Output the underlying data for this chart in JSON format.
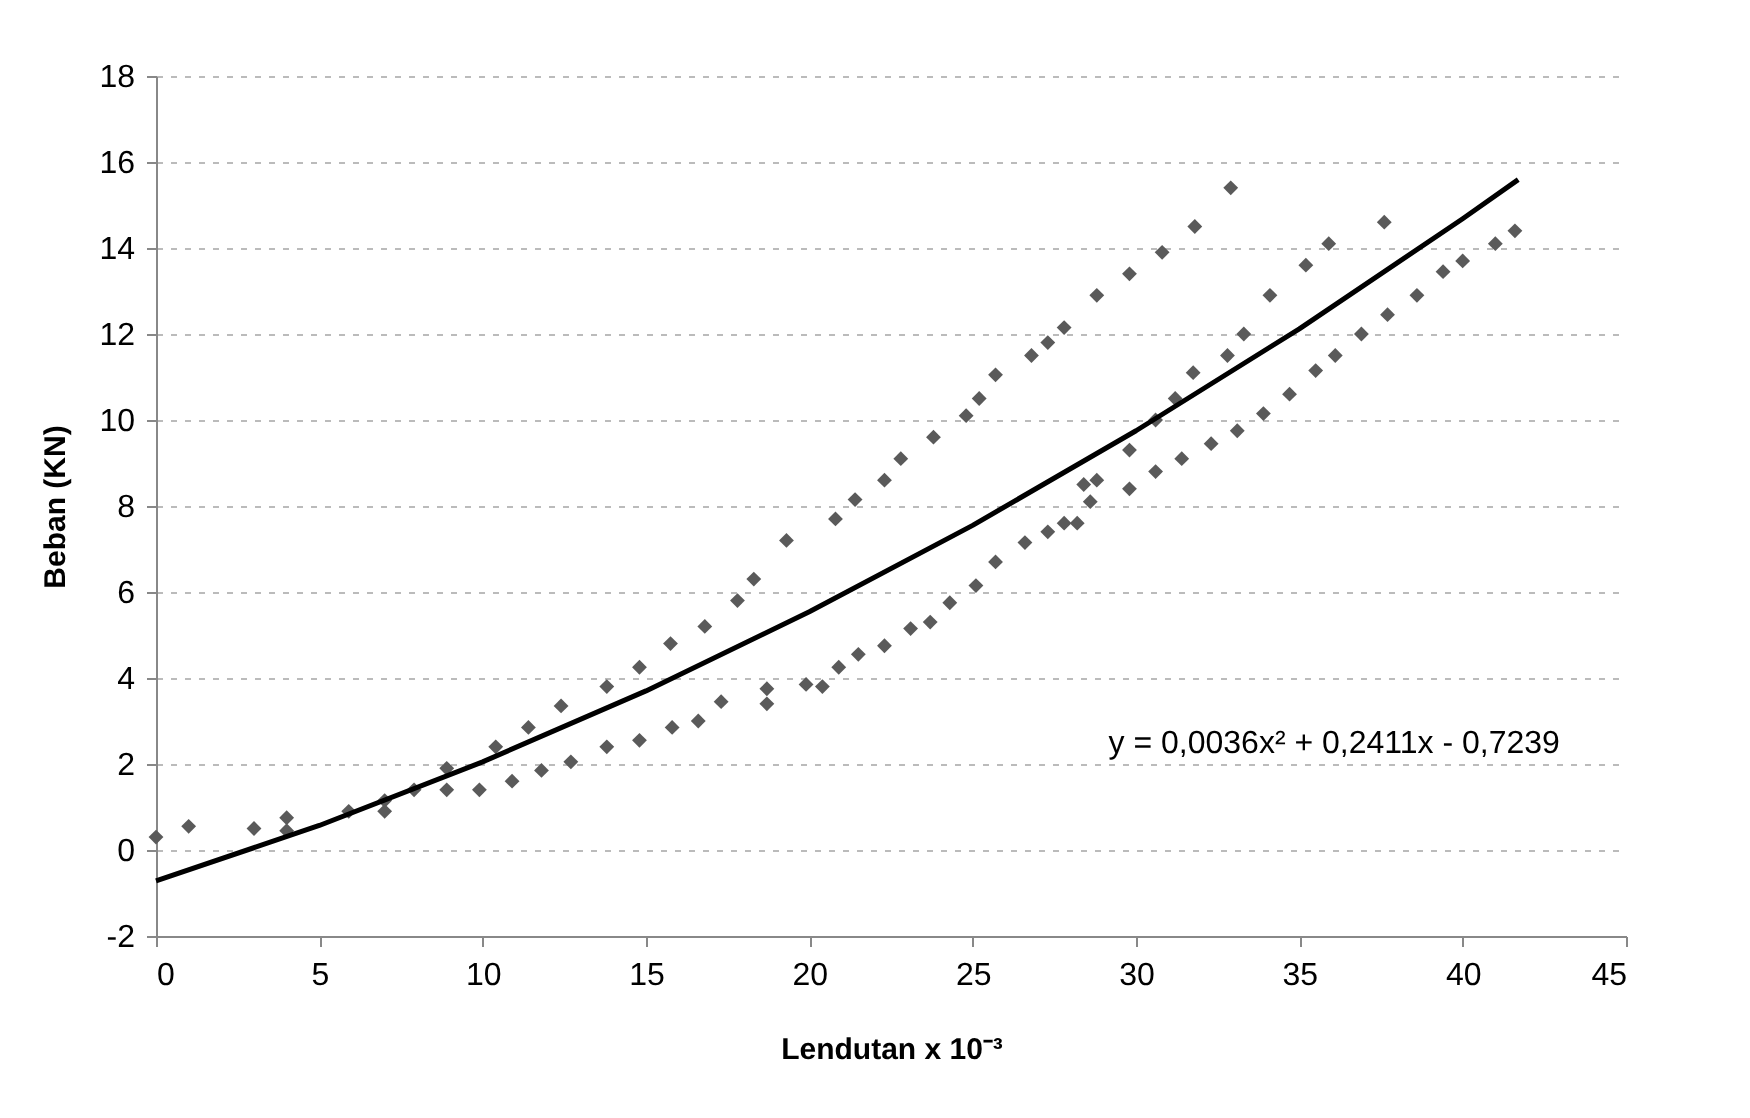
{
  "chart_data": {
    "type": "scatter",
    "xlabel": "Lendutan x 10⁻³",
    "ylabel": "Beban (KN)",
    "xlim": [
      0,
      45
    ],
    "xticks": [
      0,
      5,
      10,
      15,
      20,
      25,
      30,
      35,
      40,
      45
    ],
    "ylim": [
      -2,
      18
    ],
    "yticks": [
      -2,
      0,
      2,
      4,
      6,
      8,
      10,
      12,
      14,
      16,
      18
    ],
    "grid": "y",
    "annotations": [
      "y = 0,0036x² + 0,2411x - 0,7239"
    ],
    "series": [
      {
        "marker": "diamond",
        "color": "#5a5a5a",
        "x": [
          0,
          1,
          3,
          4,
          4,
          5.9,
          7,
          7,
          7.9,
          8.9,
          8.9,
          9.9,
          10.4,
          10.9,
          11.4,
          11.8,
          12.4,
          12.7,
          13.8,
          13.8,
          14.8,
          15.75,
          16.8,
          17.8,
          18.3,
          19.3,
          20.8,
          21.4,
          22.3,
          22.8,
          23.8,
          24.8,
          25.2,
          25.7,
          26.8,
          27.3,
          27.8,
          28.8,
          29.8,
          30.8,
          31.8,
          32.9,
          14.8,
          15.8,
          16.6,
          17.3,
          18.7,
          18.7,
          19.9,
          20.4,
          20.9,
          21.5,
          22.3,
          23.1,
          23.7,
          24.3,
          25.1,
          25.7,
          26.6,
          27.3,
          27.8,
          28.2,
          28.6,
          29.8,
          30.6,
          31.4,
          32.3,
          33.1,
          33.9,
          34.7,
          35.5,
          36.1,
          36.9,
          37.7,
          38.6,
          39.4,
          40,
          41,
          41.6,
          28.4,
          28.8,
          29.8,
          30.6,
          31.2,
          31.75,
          32.8,
          33.3,
          34.1,
          35.2,
          35.9,
          37.6
        ],
        "values": [
          0.3,
          0.55,
          0.5,
          0.75,
          0.45,
          0.9,
          1.15,
          0.9,
          1.4,
          1.9,
          1.4,
          1.4,
          2.4,
          1.6,
          2.85,
          1.85,
          3.35,
          2.05,
          3.8,
          2.4,
          4.25,
          4.8,
          5.2,
          5.8,
          6.3,
          7.2,
          7.7,
          8.15,
          8.6,
          9.1,
          9.6,
          10.1,
          10.5,
          11.05,
          11.5,
          11.8,
          12.15,
          12.9,
          13.4,
          13.9,
          14.5,
          15.4,
          2.55,
          2.85,
          3.0,
          3.45,
          3.4,
          3.75,
          3.85,
          3.8,
          4.25,
          4.55,
          4.75,
          5.15,
          5.3,
          5.75,
          6.15,
          6.7,
          7.15,
          7.4,
          7.6,
          7.6,
          8.1,
          8.4,
          8.8,
          9.1,
          9.45,
          9.75,
          10.15,
          10.6,
          11.15,
          11.5,
          12.0,
          12.45,
          12.9,
          13.45,
          13.7,
          14.1,
          14.4,
          8.5,
          8.6,
          9.3,
          10.0,
          10.5,
          11.1,
          11.5,
          12.0,
          12.9,
          13.6,
          14.1,
          14.6
        ]
      },
      {
        "type": "line",
        "marker": "none",
        "color": "#000000",
        "x": [
          0,
          5,
          10,
          15,
          20,
          25,
          30,
          35,
          40,
          41.7
        ],
        "values": [
          -0.72,
          0.57,
          2.05,
          3.7,
          5.54,
          7.55,
          9.75,
          12.12,
          14.68,
          15.59
        ]
      }
    ]
  }
}
